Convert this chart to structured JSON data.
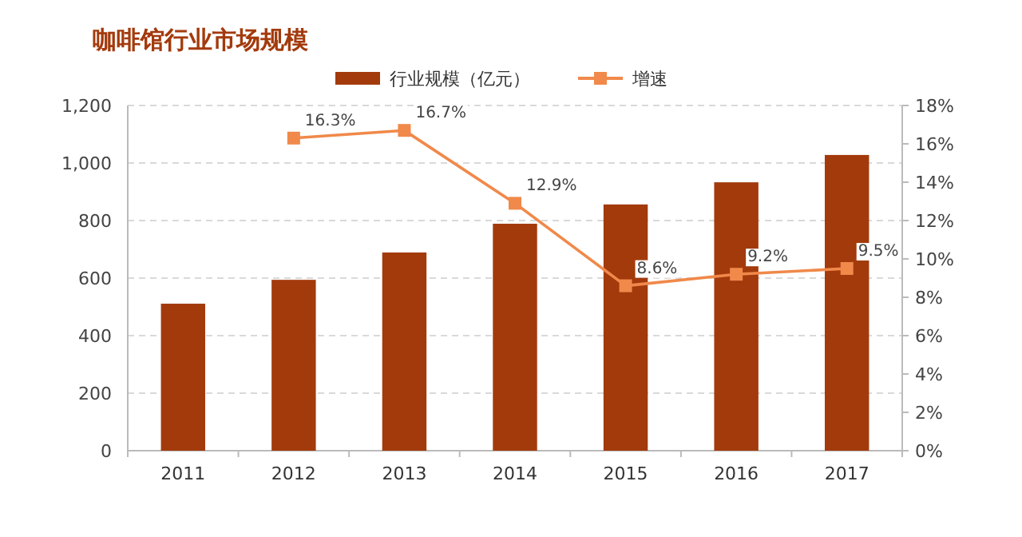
{
  "chart_data": {
    "type": "bar",
    "title": "咖啡馆行业市场规模",
    "categories": [
      "2011",
      "2012",
      "2013",
      "2014",
      "2015",
      "2016",
      "2017"
    ],
    "series": [
      {
        "name": "行业规模（亿元）",
        "color": "#a33a0c",
        "values": [
          511,
          594,
          689,
          789,
          856,
          933,
          1028
        ]
      },
      {
        "name": "增速",
        "type": "line",
        "axis": "y2",
        "color": "#f0894a",
        "marker": "square",
        "values": [
          null,
          16.3,
          16.7,
          12.9,
          8.6,
          9.2,
          9.5
        ],
        "value_labels": [
          null,
          "16.3%",
          "16.7%",
          "12.9%",
          "8.6%",
          "9.2%",
          "9.5%"
        ]
      }
    ],
    "ylim": [
      0,
      1200
    ],
    "yticks": [
      0,
      200,
      400,
      600,
      800,
      {
        "value": 1000,
        "label": "1,000"
      },
      {
        "value": 1200,
        "label": "1,200"
      }
    ],
    "y2lim": [
      0,
      18
    ],
    "y2ticks": [
      {
        "value": 0,
        "label": "0%"
      },
      {
        "value": 2,
        "label": "2%"
      },
      {
        "value": 4,
        "label": "4%"
      },
      {
        "value": 6,
        "label": "6%"
      },
      {
        "value": 8,
        "label": "8%"
      },
      {
        "value": 10,
        "label": "10%"
      },
      {
        "value": 12,
        "label": "12%"
      },
      {
        "value": 14,
        "label": "14%"
      },
      {
        "value": 16,
        "label": "16%"
      },
      {
        "value": 18,
        "label": "18%"
      }
    ],
    "grid": "y",
    "legend": "top"
  }
}
